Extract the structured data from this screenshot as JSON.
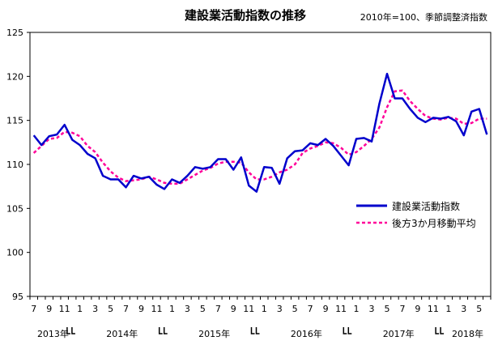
{
  "chart_data": {
    "type": "line",
    "title": "建設業活動指数の推移",
    "subtitle": "2010年=100、季節調整済指数",
    "ylim": [
      95,
      125
    ],
    "yticks": [
      95,
      100,
      105,
      110,
      115,
      120,
      125
    ],
    "month_labels": [
      "7",
      "9",
      "11",
      "1",
      "3",
      "5",
      "7",
      "9",
      "11",
      "1",
      "3",
      "5",
      "7",
      "9",
      "11",
      "1",
      "3",
      "5",
      "7",
      "9",
      "11",
      "1",
      "3",
      "5",
      "7",
      "9",
      "11",
      "1",
      "3",
      "5"
    ],
    "year_labels": [
      "2013年",
      "2014年",
      "2015年",
      "2016年",
      "2017年",
      "2018年"
    ],
    "legend_placement": "right-middle",
    "grid": false,
    "series": [
      {
        "name": "建設業活動指数",
        "color": "#0000cc",
        "style": "solid",
        "values": [
          113.3,
          112.2,
          113.2,
          113.4,
          114.5,
          112.8,
          112.2,
          111.2,
          110.7,
          108.7,
          108.3,
          108.3,
          107.4,
          108.7,
          108.4,
          108.6,
          107.7,
          107.2,
          108.3,
          107.9,
          108.7,
          109.7,
          109.5,
          109.7,
          110.6,
          110.6,
          109.4,
          110.8,
          107.6,
          106.9,
          109.7,
          109.6,
          107.8,
          110.7,
          111.5,
          111.6,
          112.4,
          112.2,
          112.9,
          112.1,
          111.0,
          109.9,
          112.9,
          113.0,
          112.6,
          116.9,
          120.3,
          117.5,
          117.5,
          116.3,
          115.3,
          114.8,
          115.3,
          115.2,
          115.4,
          114.9,
          113.3,
          116.0,
          116.3,
          113.4
        ]
      },
      {
        "name": "後方3か月移動平均",
        "color": "#ff0099",
        "style": "dashed",
        "values": [
          111.3,
          112.1,
          112.9,
          113.0,
          113.7,
          113.6,
          113.2,
          112.1,
          111.4,
          110.2,
          109.2,
          108.5,
          108.1,
          108.2,
          108.3,
          108.6,
          108.3,
          107.9,
          107.8,
          107.8,
          108.3,
          108.8,
          109.3,
          109.6,
          110.1,
          110.3,
          110.3,
          110.2,
          109.1,
          108.3,
          108.3,
          108.6,
          109.1,
          109.4,
          110.0,
          111.3,
          111.8,
          112.1,
          112.5,
          112.4,
          111.9,
          111.1,
          111.4,
          112.1,
          112.9,
          114.2,
          116.5,
          118.3,
          118.4,
          117.2,
          116.3,
          115.5,
          115.2,
          115.1,
          115.3,
          115.2,
          114.6,
          114.7,
          115.2,
          115.2
        ]
      }
    ]
  }
}
